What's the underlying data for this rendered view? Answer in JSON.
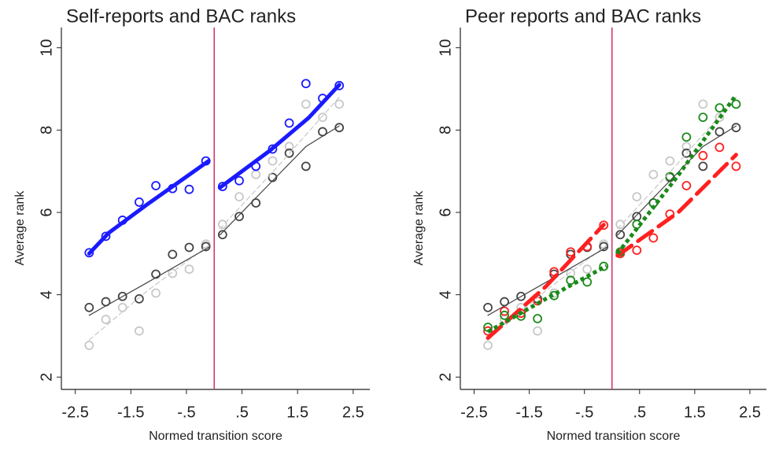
{
  "chart_data": [
    {
      "type": "scatter",
      "title": "Self-reports and BAC ranks",
      "xlabel": "Normed transition score",
      "ylabel": "Average rank",
      "xlim": [
        -2.75,
        2.8
      ],
      "ylim": [
        1.7,
        10.3
      ],
      "xticks": [
        -2.5,
        -1.5,
        {
          "value": -0.5,
          "label": "-.5"
        },
        {
          "value": 0.5,
          "label": ".5"
        },
        1.5,
        2.5
      ],
      "yticks": [
        2,
        4,
        6,
        8,
        10
      ],
      "vline": 0,
      "vline_color": "#d0306a",
      "series": [
        {
          "mode": "markers",
          "color": "#c8c8c8",
          "x": [
            -2.25,
            -1.95,
            -1.65,
            -1.35,
            -1.05,
            -0.75,
            -0.45,
            -0.15,
            0.15,
            0.45,
            0.75,
            1.05,
            1.35,
            1.65,
            1.95,
            2.25
          ],
          "values": [
            2.77,
            3.4,
            3.69,
            3.12,
            4.04,
            4.52,
            4.62,
            5.23,
            5.71,
            6.38,
            6.92,
            7.25,
            7.6,
            8.63,
            8.31,
            8.63
          ]
        },
        {
          "mode": "markers",
          "color": "#444444",
          "x": [
            -2.25,
            -1.95,
            -1.65,
            -1.35,
            -1.05,
            -0.75,
            -0.45,
            -0.15,
            0.15,
            0.45,
            0.75,
            1.05,
            1.35,
            1.65,
            1.95,
            2.25
          ],
          "values": [
            3.69,
            3.83,
            3.96,
            3.9,
            4.5,
            4.98,
            5.15,
            5.17,
            5.46,
            5.9,
            6.23,
            6.85,
            7.44,
            7.12,
            7.96,
            8.06
          ]
        },
        {
          "mode": "markers",
          "color": "#1a1aff",
          "x": [
            -2.25,
            -1.95,
            -1.65,
            -1.35,
            -1.05,
            -0.75,
            -0.45,
            -0.15,
            0.15,
            0.45,
            0.75,
            1.05,
            1.35,
            1.65,
            1.95,
            2.25
          ],
          "values": [
            5.02,
            5.42,
            5.81,
            6.25,
            6.65,
            6.58,
            6.56,
            7.25,
            6.63,
            6.77,
            7.12,
            7.54,
            8.17,
            9.13,
            8.77,
            9.08
          ]
        },
        {
          "mode": "line",
          "style": "dashed",
          "color": "#c8c8c8",
          "x": [
            -2.25,
            -1.2,
            -0.1,
            null,
            0.1,
            1.2,
            2.25
          ],
          "values": [
            2.9,
            4.1,
            5.2,
            null,
            5.6,
            7.2,
            8.8
          ]
        },
        {
          "mode": "line",
          "style": "thin",
          "color": "#444444",
          "x": [
            -2.25,
            -1.2,
            -0.1,
            null,
            0.1,
            1.0,
            1.65,
            2.25
          ],
          "values": [
            3.5,
            4.3,
            5.15,
            null,
            5.45,
            6.7,
            7.6,
            8.1
          ]
        },
        {
          "mode": "line",
          "style": "thick",
          "color": "#1a1aff",
          "x": [
            -2.25,
            -1.9,
            -1.2,
            -0.1,
            null,
            0.1,
            1.0,
            1.7,
            2.25
          ],
          "values": [
            5.0,
            5.5,
            6.2,
            7.25,
            null,
            6.6,
            7.5,
            8.3,
            9.1
          ]
        }
      ]
    },
    {
      "type": "scatter",
      "title": "Peer reports and BAC ranks",
      "xlabel": "Normed transition score",
      "ylabel": "Average rank",
      "xlim": [
        -2.75,
        2.8
      ],
      "ylim": [
        1.7,
        10.3
      ],
      "xticks": [
        -2.5,
        -1.5,
        {
          "value": -0.5,
          "label": "-.5"
        },
        {
          "value": 0.5,
          "label": ".5"
        },
        1.5,
        2.5
      ],
      "yticks": [
        2,
        4,
        6,
        8,
        10
      ],
      "vline": 0,
      "vline_color": "#d0306a",
      "series": [
        {
          "mode": "markers",
          "color": "#c8c8c8",
          "x": [
            -2.25,
            -1.95,
            -1.65,
            -1.35,
            -1.05,
            -0.75,
            -0.45,
            -0.15,
            0.15,
            0.45,
            0.75,
            1.05,
            1.35,
            1.65,
            1.95,
            2.25
          ],
          "values": [
            2.77,
            3.4,
            3.69,
            3.12,
            4.04,
            4.52,
            4.62,
            5.23,
            5.71,
            6.38,
            6.92,
            7.25,
            7.6,
            8.63,
            8.31,
            8.63
          ]
        },
        {
          "mode": "markers",
          "color": "#444444",
          "x": [
            -2.25,
            -1.95,
            -1.65,
            -1.35,
            -1.05,
            -0.75,
            -0.45,
            -0.15,
            0.15,
            0.45,
            0.75,
            1.05,
            1.35,
            1.65,
            1.95,
            2.25
          ],
          "values": [
            3.69,
            3.83,
            3.96,
            3.9,
            4.5,
            4.98,
            5.15,
            5.17,
            5.46,
            5.9,
            6.23,
            6.85,
            7.44,
            7.12,
            7.96,
            8.06
          ]
        },
        {
          "mode": "markers",
          "color": "#ff2020",
          "x": [
            -2.25,
            -1.95,
            -1.65,
            -1.35,
            -1.05,
            -0.75,
            -0.45,
            -0.15,
            0.15,
            0.45,
            0.75,
            1.05,
            1.35,
            1.65,
            1.95,
            2.25
          ],
          "values": [
            3.12,
            3.6,
            3.55,
            3.85,
            4.56,
            5.04,
            5.17,
            5.69,
            5.0,
            5.08,
            5.38,
            5.96,
            6.65,
            7.38,
            7.58,
            7.12
          ]
        },
        {
          "mode": "markers",
          "color": "#1a8a1a",
          "x": [
            -2.25,
            -1.95,
            -1.65,
            -1.35,
            -1.05,
            -0.75,
            -0.45,
            -0.15,
            0.15,
            0.45,
            0.75,
            1.05,
            1.35,
            1.65,
            1.95,
            2.25
          ],
          "values": [
            3.21,
            3.5,
            3.48,
            3.42,
            3.98,
            4.35,
            4.31,
            4.69,
            5.04,
            5.71,
            6.23,
            6.87,
            7.83,
            8.31,
            8.54,
            8.63
          ]
        },
        {
          "mode": "line",
          "style": "dashed",
          "color": "#c8c8c8",
          "x": [
            -2.25,
            -1.2,
            -0.1,
            null,
            0.1,
            1.2,
            2.25
          ],
          "values": [
            2.9,
            4.1,
            5.2,
            null,
            5.6,
            7.2,
            8.8
          ]
        },
        {
          "mode": "line",
          "style": "thin",
          "color": "#444444",
          "x": [
            -2.25,
            -1.2,
            -0.1,
            null,
            0.1,
            1.0,
            1.65,
            2.25
          ],
          "values": [
            3.5,
            4.3,
            5.15,
            null,
            5.45,
            6.7,
            7.6,
            8.1
          ]
        },
        {
          "mode": "line",
          "style": "longdash",
          "color": "#ff2020",
          "x": [
            -2.25,
            -1.2,
            -0.15,
            null,
            0.1,
            1.2,
            2.25
          ],
          "values": [
            2.95,
            4.2,
            5.7,
            null,
            4.95,
            6.0,
            7.4
          ]
        },
        {
          "mode": "line",
          "style": "dotted",
          "color": "#1a8a1a",
          "x": [
            -2.25,
            -1.2,
            -0.1,
            null,
            0.1,
            1.2,
            2.25
          ],
          "values": [
            3.1,
            3.9,
            4.7,
            null,
            5.0,
            6.9,
            8.85
          ]
        }
      ]
    }
  ]
}
